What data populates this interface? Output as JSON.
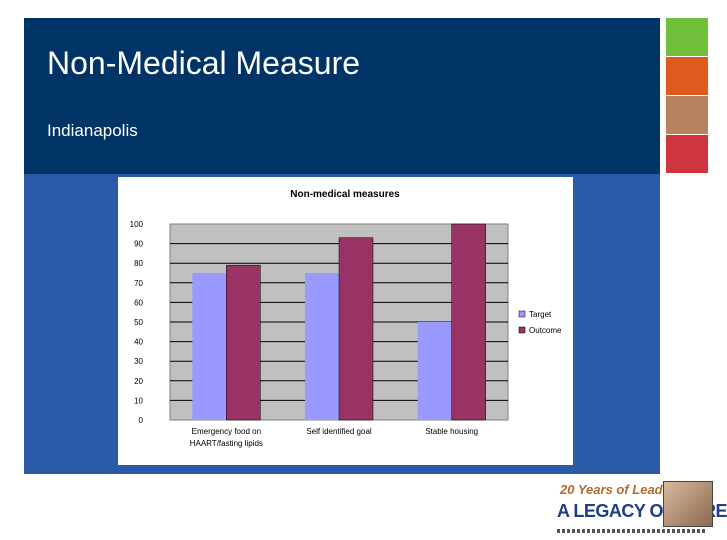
{
  "slide": {
    "title": "Non-Medical Measure",
    "subtitle": "Indianapolis"
  },
  "colors": {
    "header": "#003366",
    "panel": "#2b5aa9",
    "stripes": [
      "#6fbf3a",
      "#e05a1e",
      "#b58360",
      "#d0353f"
    ],
    "target": "#9999ff",
    "outcome": "#993366",
    "plot_bg": "#c0c0c0"
  },
  "chart_data": {
    "type": "bar",
    "title": "Non-medical measures",
    "categories": [
      [
        "Emergency food on",
        "HAART/fasting lipids"
      ],
      [
        "Self identified goal"
      ],
      [
        "Stable housing"
      ]
    ],
    "series": [
      {
        "name": "Target",
        "values": [
          75,
          75,
          50
        ]
      },
      {
        "name": "Outcome",
        "values": [
          79,
          93,
          100
        ]
      }
    ],
    "ylim": [
      0,
      100
    ],
    "yticks": [
      0,
      10,
      20,
      30,
      40,
      50,
      60,
      70,
      80,
      90,
      100
    ],
    "grid": true,
    "legend": "right"
  },
  "logo": {
    "line1": "20 Years of Leadership",
    "line2": "A LEGACY OF CARE"
  }
}
